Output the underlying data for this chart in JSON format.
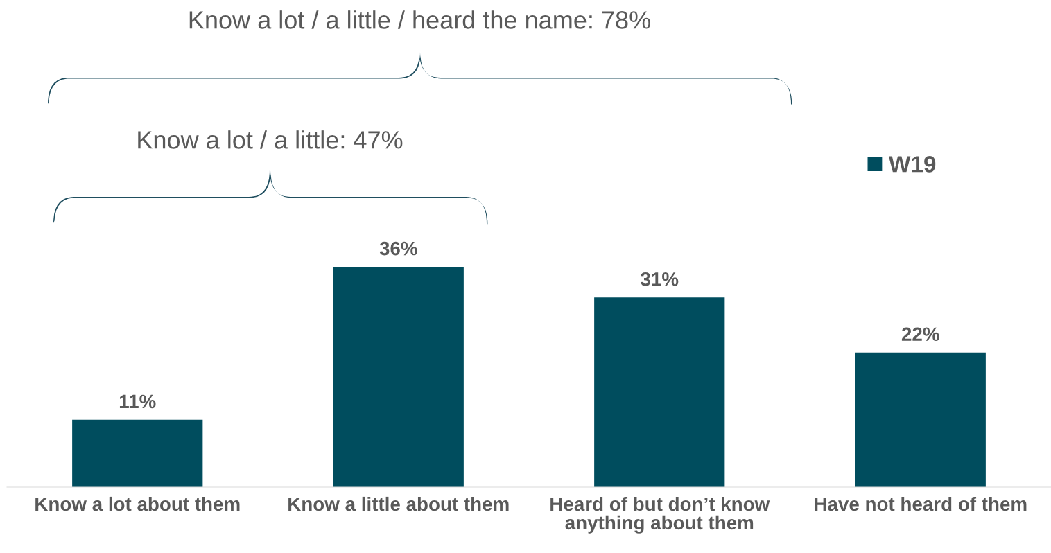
{
  "chart_data": {
    "type": "bar",
    "categories": [
      "Know a lot about them",
      "Know a little about them",
      "Heard of but don’t know\nanything about them",
      "Have not heard of them"
    ],
    "series": [
      {
        "name": "W19",
        "color": "#004d5e",
        "values": [
          11,
          36,
          31,
          22
        ],
        "value_labels": [
          "11%",
          "36%",
          "31%",
          "22%"
        ]
      }
    ],
    "annotations": [
      "Know a lot / a little: 47%",
      "Know a lot / a little / heard the name: 78%"
    ],
    "tick_labels": "x",
    "grid": false,
    "legend": "top right"
  }
}
